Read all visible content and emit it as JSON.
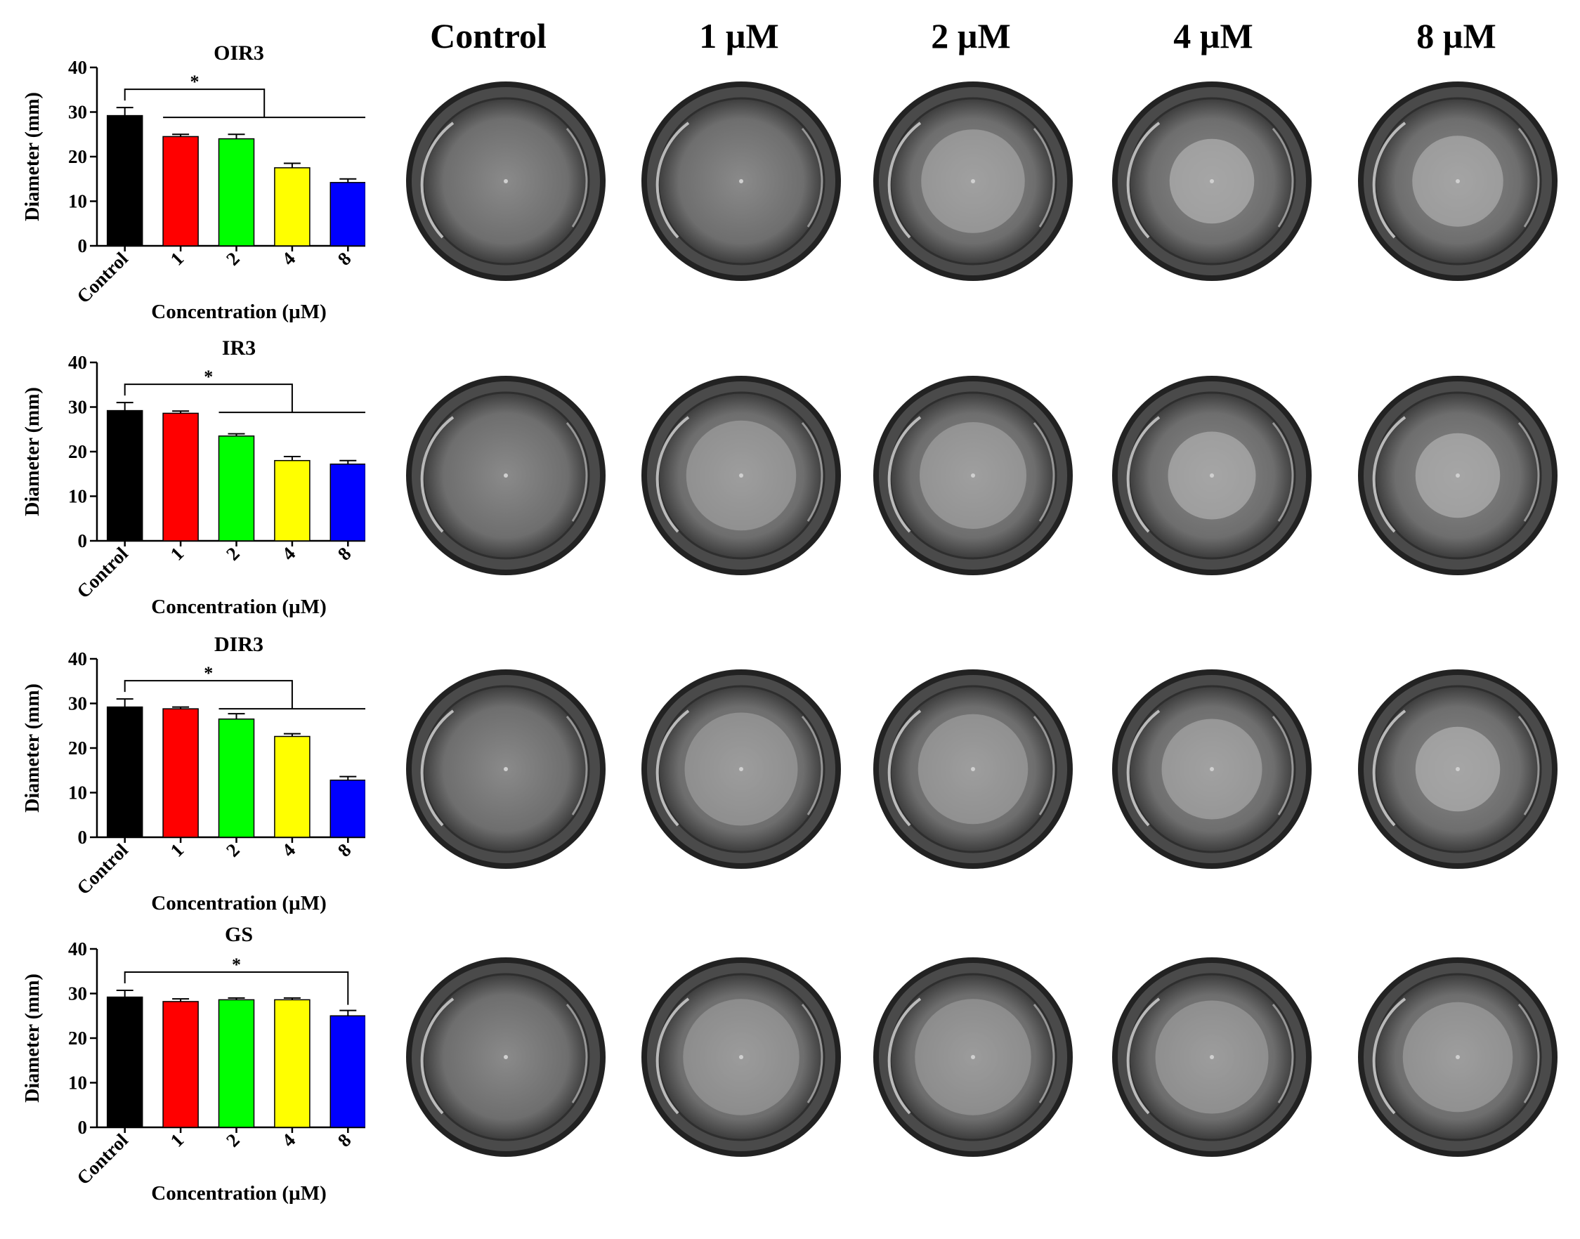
{
  "column_headers": [
    "Control",
    "1 µM",
    "2 µM",
    "4 µM",
    "8 µM"
  ],
  "chart_data": [
    {
      "type": "bar",
      "title": "OIR3",
      "xlabel": "Concentration (µM)",
      "ylabel": "Diameter (mm)",
      "ylim": [
        0,
        40
      ],
      "yticks": [
        0,
        10,
        20,
        30,
        40
      ],
      "categories": [
        "Control",
        "1",
        "2",
        "4",
        "8"
      ],
      "values": [
        29.2,
        24.5,
        24.0,
        17.5,
        14.2
      ],
      "errors": [
        1.8,
        0.5,
        1.0,
        1.0,
        0.8
      ],
      "colors": [
        "#000000",
        "#ff0000",
        "#00ff00",
        "#ffff00",
        "#0000ff"
      ],
      "significance": {
        "label": "*",
        "from": "Control",
        "to": [
          "1",
          "2",
          "4",
          "8"
        ]
      }
    },
    {
      "type": "bar",
      "title": "IR3",
      "xlabel": "Concentration (µM)",
      "ylabel": "Diameter (mm)",
      "ylim": [
        0,
        40
      ],
      "yticks": [
        0,
        10,
        20,
        30,
        40
      ],
      "categories": [
        "Control",
        "1",
        "2",
        "4",
        "8"
      ],
      "values": [
        29.2,
        28.6,
        23.5,
        18.0,
        17.2
      ],
      "errors": [
        1.8,
        0.5,
        0.5,
        0.9,
        0.8
      ],
      "colors": [
        "#000000",
        "#ff0000",
        "#00ff00",
        "#ffff00",
        "#0000ff"
      ],
      "significance": {
        "label": "*",
        "from": "Control",
        "to": [
          "2",
          "4",
          "8"
        ]
      }
    },
    {
      "type": "bar",
      "title": "DIR3",
      "xlabel": "Concentration (µM)",
      "ylabel": "Diameter (mm)",
      "ylim": [
        0,
        40
      ],
      "yticks": [
        0,
        10,
        20,
        30,
        40
      ],
      "categories": [
        "Control",
        "1",
        "2",
        "4",
        "8"
      ],
      "values": [
        29.2,
        28.8,
        26.5,
        22.6,
        12.8
      ],
      "errors": [
        1.8,
        0.4,
        1.2,
        0.6,
        0.8
      ],
      "colors": [
        "#000000",
        "#ff0000",
        "#00ff00",
        "#ffff00",
        "#0000ff"
      ],
      "significance": {
        "label": "*",
        "from": "Control",
        "to": [
          "2",
          "4",
          "8"
        ]
      }
    },
    {
      "type": "bar",
      "title": "GS",
      "xlabel": "Concentration (µM)",
      "ylabel": "Diameter (mm)",
      "ylim": [
        0,
        40
      ],
      "yticks": [
        0,
        10,
        20,
        30,
        40
      ],
      "categories": [
        "Control",
        "1",
        "2",
        "4",
        "8"
      ],
      "values": [
        29.2,
        28.2,
        28.6,
        28.6,
        25.0
      ],
      "errors": [
        1.5,
        0.6,
        0.4,
        0.4,
        1.2
      ],
      "colors": [
        "#000000",
        "#ff0000",
        "#00ff00",
        "#ffff00",
        "#0000ff"
      ],
      "significance": {
        "label": "*",
        "from": "Control",
        "to": [
          "8"
        ]
      }
    }
  ],
  "dish_photos": [
    {
      "row": "OIR3",
      "spots": [
        0,
        0,
        0.25,
        0.55,
        0.45
      ]
    },
    {
      "row": "IR3",
      "spots": [
        0,
        0.15,
        0.2,
        0.5,
        0.55
      ]
    },
    {
      "row": "DIR3",
      "spots": [
        0,
        0.1,
        0.15,
        0.3,
        0.55
      ]
    },
    {
      "row": "GS",
      "spots": [
        0,
        0.05,
        0.05,
        0.1,
        0.15
      ]
    }
  ]
}
